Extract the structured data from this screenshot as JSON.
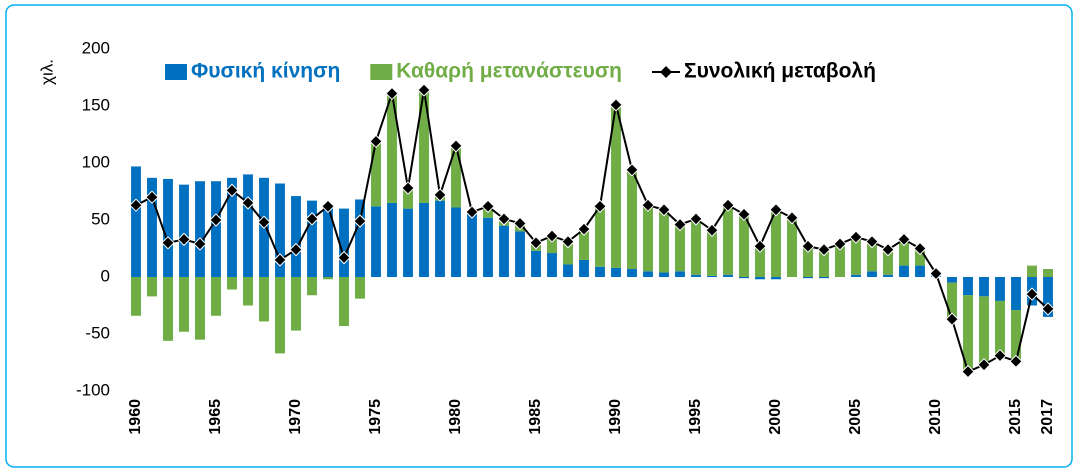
{
  "chart_data": {
    "type": "bar",
    "stacked": true,
    "y_label": "χιλ.",
    "categories": [
      "1960",
      null,
      null,
      null,
      null,
      "1965",
      null,
      null,
      null,
      null,
      "1970",
      null,
      null,
      null,
      null,
      "1975",
      null,
      null,
      null,
      null,
      "1980",
      null,
      null,
      null,
      null,
      "1985",
      null,
      null,
      null,
      null,
      "1990",
      null,
      null,
      null,
      null,
      "1995",
      null,
      null,
      null,
      null,
      "2000",
      null,
      null,
      null,
      null,
      "2005",
      null,
      null,
      null,
      null,
      "2010",
      null,
      null,
      null,
      null,
      "2015",
      null,
      "2017"
    ],
    "series": [
      {
        "name": "Φυσική κίνηση",
        "type": "bar",
        "color": "#0070c0",
        "values": [
          97,
          87,
          86,
          81,
          84,
          84,
          87,
          90,
          87,
          82,
          71,
          67,
          64,
          60,
          68,
          62,
          65,
          60,
          65,
          67,
          61,
          56,
          52,
          45,
          40,
          23,
          21,
          11,
          15,
          9,
          8,
          7,
          5,
          4,
          5,
          2,
          1,
          2,
          -1,
          -2,
          -2,
          0,
          -1,
          -1,
          0,
          2,
          5,
          2,
          10,
          10,
          1,
          -5,
          -16,
          -17,
          -21,
          -29,
          -25,
          -35
        ]
      },
      {
        "name": "Καθαρή μετανάστευση",
        "type": "bar",
        "color": "#70ad47",
        "values": [
          -34,
          -17,
          -56,
          -48,
          -55,
          -34,
          -11,
          -25,
          -39,
          -67,
          -47,
          -16,
          -2,
          -43,
          -19,
          57,
          96,
          18,
          99,
          5,
          54,
          1,
          10,
          6,
          7,
          7,
          15,
          20,
          27,
          53,
          143,
          87,
          58,
          55,
          41,
          49,
          40,
          61,
          56,
          29,
          61,
          52,
          28,
          25,
          29,
          33,
          26,
          22,
          23,
          15,
          2,
          -32,
          -67,
          -60,
          -48,
          -45,
          10,
          7
        ]
      },
      {
        "name": "Συνολική μεταβολή",
        "type": "line",
        "color": "#000000",
        "values": [
          63,
          70,
          30,
          33,
          29,
          50,
          76,
          65,
          48,
          15,
          24,
          51,
          62,
          17,
          49,
          119,
          161,
          78,
          164,
          72,
          115,
          57,
          62,
          51,
          47,
          30,
          36,
          31,
          42,
          62,
          151,
          94,
          63,
          59,
          46,
          51,
          41,
          63,
          55,
          27,
          59,
          52,
          27,
          24,
          29,
          35,
          31,
          24,
          33,
          25,
          3,
          -37,
          -83,
          -77,
          -69,
          -74,
          -15,
          -28
        ]
      }
    ],
    "ylim": [
      -100,
      200
    ],
    "yticks": [
      -100,
      -50,
      0,
      50,
      100,
      150,
      200
    ],
    "grid": false,
    "legend": "top"
  }
}
